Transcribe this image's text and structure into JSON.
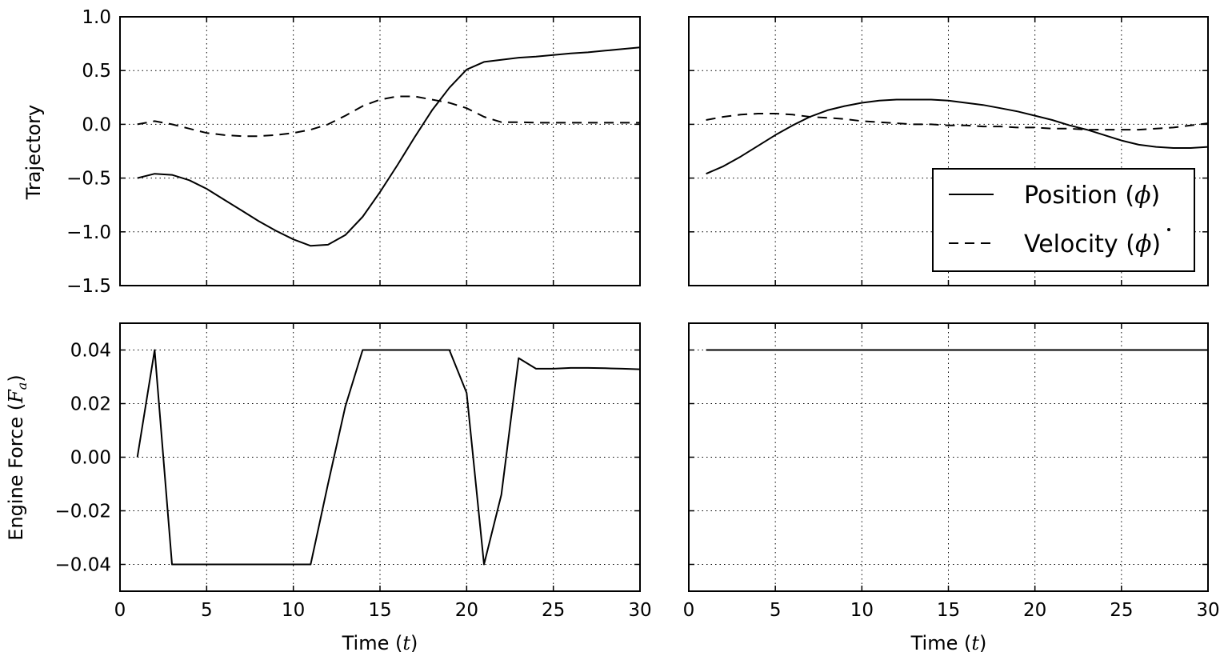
{
  "chart_data": [
    {
      "type": "line",
      "panel": "top-left",
      "ylabel": "Trajectory",
      "xlim": [
        0,
        30
      ],
      "ylim": [
        -1.5,
        1.0
      ],
      "xticks": [
        "0",
        "5",
        "10",
        "15",
        "20",
        "25",
        "30"
      ],
      "yticks": [
        "1.0",
        "0.5",
        "0.0",
        "−0.5",
        "−1.0",
        "−1.5"
      ],
      "ytick_values": [
        1.0,
        0.5,
        0.0,
        -0.5,
        -1.0,
        -1.5
      ],
      "grid": true,
      "series": [
        {
          "name": "Position (ϕ)",
          "style": "solid",
          "x": [
            1,
            2,
            3,
            4,
            5,
            6,
            7,
            8,
            9,
            10,
            11,
            12,
            13,
            14,
            15,
            16,
            17,
            18,
            19,
            20,
            21,
            22,
            23,
            24,
            25,
            26,
            27,
            28,
            29,
            30
          ],
          "y": [
            -0.5,
            -0.46,
            -0.47,
            -0.52,
            -0.6,
            -0.7,
            -0.8,
            -0.9,
            -0.99,
            -1.07,
            -1.13,
            -1.12,
            -1.03,
            -0.86,
            -0.63,
            -0.38,
            -0.12,
            0.13,
            0.34,
            0.51,
            0.58,
            0.6,
            0.62,
            0.63,
            0.645,
            0.66,
            0.67,
            0.685,
            0.7,
            0.715
          ]
        },
        {
          "name": "Velocity (ϕ̇)",
          "style": "dashed",
          "x": [
            1,
            2,
            3,
            4,
            5,
            6,
            7,
            8,
            9,
            10,
            11,
            12,
            13,
            14,
            15,
            16,
            17,
            18,
            19,
            20,
            21,
            22,
            23,
            24,
            25,
            26,
            27,
            28,
            29,
            30
          ],
          "y": [
            0.0,
            0.03,
            0.0,
            -0.04,
            -0.08,
            -0.1,
            -0.11,
            -0.11,
            -0.1,
            -0.08,
            -0.05,
            0.0,
            0.08,
            0.17,
            0.23,
            0.26,
            0.26,
            0.23,
            0.2,
            0.15,
            0.07,
            0.02,
            0.02,
            0.015,
            0.015,
            0.015,
            0.015,
            0.015,
            0.015,
            0.015
          ]
        }
      ]
    },
    {
      "type": "line",
      "panel": "top-right",
      "xlim": [
        0,
        30
      ],
      "ylim": [
        -1.5,
        1.0
      ],
      "ytick_values": [
        1.0,
        0.5,
        0.0,
        -0.5,
        -1.0,
        -1.5
      ],
      "grid": true,
      "legend_position": "lower-right",
      "legend": [
        "Position",
        "Velocity"
      ],
      "series": [
        {
          "name": "Position (ϕ)",
          "style": "solid",
          "x": [
            1,
            2,
            3,
            4,
            5,
            6,
            7,
            8,
            9,
            10,
            11,
            12,
            13,
            14,
            15,
            16,
            17,
            18,
            19,
            20,
            21,
            22,
            23,
            24,
            25,
            26,
            27,
            28,
            29,
            30
          ],
          "y": [
            -0.46,
            -0.39,
            -0.3,
            -0.2,
            -0.1,
            -0.01,
            0.07,
            0.13,
            0.17,
            0.2,
            0.22,
            0.23,
            0.23,
            0.23,
            0.22,
            0.2,
            0.18,
            0.15,
            0.12,
            0.08,
            0.04,
            -0.01,
            -0.05,
            -0.1,
            -0.15,
            -0.19,
            -0.21,
            -0.22,
            -0.22,
            -0.21
          ]
        },
        {
          "name": "Velocity (ϕ̇)",
          "style": "dashed",
          "x": [
            1,
            2,
            3,
            4,
            5,
            6,
            7,
            8,
            9,
            10,
            11,
            12,
            13,
            14,
            15,
            16,
            17,
            18,
            19,
            20,
            21,
            22,
            23,
            24,
            25,
            26,
            27,
            28,
            29,
            30
          ],
          "y": [
            0.04,
            0.07,
            0.09,
            0.1,
            0.1,
            0.09,
            0.07,
            0.06,
            0.05,
            0.03,
            0.02,
            0.01,
            0.0,
            0.0,
            -0.01,
            -0.01,
            -0.02,
            -0.02,
            -0.03,
            -0.03,
            -0.04,
            -0.04,
            -0.05,
            -0.05,
            -0.05,
            -0.05,
            -0.04,
            -0.03,
            -0.01,
            0.01
          ]
        }
      ]
    },
    {
      "type": "line",
      "panel": "bottom-left",
      "ylabel": "Engine Force (Fₐ)",
      "xlabel": "Time (t)",
      "xlim": [
        0,
        30
      ],
      "ylim": [
        -0.05,
        0.05
      ],
      "xticks": [
        "0",
        "5",
        "10",
        "15",
        "20",
        "25",
        "30"
      ],
      "yticks": [
        "0.04",
        "0.02",
        "0.00",
        "−0.02",
        "−0.04"
      ],
      "ytick_values": [
        0.04,
        0.02,
        0.0,
        -0.02,
        -0.04
      ],
      "grid": true,
      "series": [
        {
          "name": "Engine Force",
          "style": "solid",
          "x": [
            1,
            2,
            3,
            4,
            5,
            6,
            7,
            8,
            9,
            10,
            11,
            12,
            13,
            14,
            15,
            16,
            17,
            18,
            19,
            20,
            21,
            22,
            23,
            24,
            25,
            26,
            27,
            28,
            29,
            30
          ],
          "y": [
            0.0,
            0.04,
            -0.04,
            -0.04,
            -0.04,
            -0.04,
            -0.04,
            -0.04,
            -0.04,
            -0.04,
            -0.04,
            -0.01,
            0.019,
            0.04,
            0.04,
            0.04,
            0.04,
            0.04,
            0.04,
            0.024,
            -0.04,
            -0.014,
            0.037,
            0.033,
            0.033,
            0.0333,
            0.0333,
            0.0332,
            0.033,
            0.0328
          ]
        }
      ]
    },
    {
      "type": "line",
      "panel": "bottom-right",
      "xlabel": "Time (t)",
      "xlim": [
        0,
        30
      ],
      "ylim": [
        -0.05,
        0.05
      ],
      "xticks": [
        "0",
        "5",
        "10",
        "15",
        "20",
        "25",
        "30"
      ],
      "ytick_values": [
        0.04,
        0.02,
        0.0,
        -0.02,
        -0.04
      ],
      "grid": true,
      "series": [
        {
          "name": "Engine Force",
          "style": "solid",
          "x": [
            1,
            30
          ],
          "y": [
            0.04,
            0.04
          ]
        }
      ]
    }
  ],
  "legend": {
    "position_label": "Position",
    "position_symbol": "ϕ",
    "velocity_label": "Velocity",
    "velocity_symbol": "ϕ"
  },
  "labels": {
    "trajectory": "Trajectory",
    "engine_force": "Engine Force",
    "engine_force_symbol": "F",
    "engine_force_sub": "a",
    "time": "Time",
    "time_symbol": "t"
  }
}
